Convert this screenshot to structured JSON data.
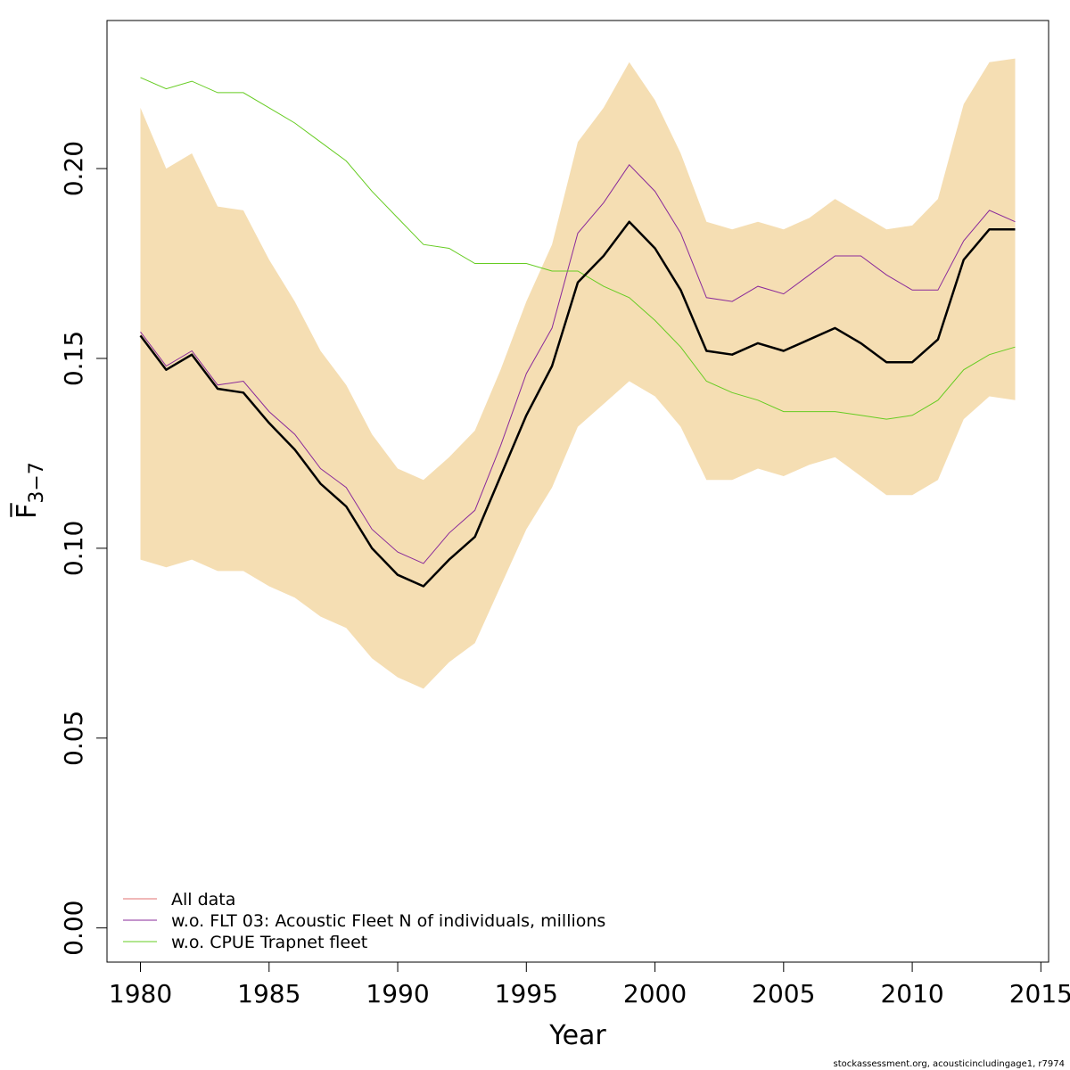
{
  "chart_data": {
    "type": "line",
    "title": "",
    "xlabel": "Year",
    "ylabel": "F̅",
    "ylabel_subscript": "3−7",
    "xlim": [
      1978.7,
      2015.3
    ],
    "ylim": [
      -0.009,
      0.239
    ],
    "x_ticks": [
      1980,
      1985,
      1990,
      1995,
      2000,
      2005,
      2010,
      2015
    ],
    "y_ticks": [
      0.0,
      0.05,
      0.1,
      0.15,
      0.2
    ],
    "y_tick_labels": [
      "0.00",
      "0.05",
      "0.10",
      "0.15",
      "0.20"
    ],
    "grid": false,
    "legend_position": "bottom-left",
    "x": [
      1980,
      1981,
      1982,
      1983,
      1984,
      1985,
      1986,
      1987,
      1988,
      1989,
      1990,
      1991,
      1992,
      1993,
      1994,
      1995,
      1996,
      1997,
      1998,
      1999,
      2000,
      2001,
      2002,
      2003,
      2004,
      2005,
      2006,
      2007,
      2008,
      2009,
      2010,
      2011,
      2012,
      2013,
      2014
    ],
    "band": {
      "color": "#f5deb3",
      "upper": [
        0.216,
        0.2,
        0.204,
        0.19,
        0.189,
        0.176,
        0.165,
        0.152,
        0.143,
        0.13,
        0.121,
        0.118,
        0.124,
        0.131,
        0.147,
        0.165,
        0.18,
        0.207,
        0.216,
        0.228,
        0.218,
        0.204,
        0.186,
        0.184,
        0.186,
        0.184,
        0.187,
        0.192,
        0.188,
        0.184,
        0.185,
        0.192,
        0.217,
        0.228,
        0.229
      ],
      "lower": [
        0.097,
        0.095,
        0.097,
        0.094,
        0.094,
        0.09,
        0.087,
        0.082,
        0.079,
        0.071,
        0.066,
        0.063,
        0.07,
        0.075,
        0.09,
        0.105,
        0.116,
        0.132,
        0.138,
        0.144,
        0.14,
        0.132,
        0.118,
        0.118,
        0.121,
        0.119,
        0.122,
        0.124,
        0.119,
        0.114,
        0.114,
        0.118,
        0.134,
        0.14,
        0.139
      ]
    },
    "series": [
      {
        "name": "All data",
        "color": "#e07070",
        "width": 1,
        "values": [
          0.156,
          0.147,
          0.151,
          0.142,
          0.141,
          0.133,
          0.126,
          0.117,
          0.111,
          0.1,
          0.093,
          0.09,
          0.097,
          0.103,
          0.119,
          0.135,
          0.148,
          0.17,
          0.177,
          0.186,
          0.179,
          0.168,
          0.152,
          0.151,
          0.154,
          0.152,
          0.155,
          0.158,
          0.154,
          0.149,
          0.149,
          0.155,
          0.176,
          0.184,
          0.184
        ]
      },
      {
        "name": "w.o. FLT 03: Acoustic Fleet   N of individuals, millions",
        "color": "#8a2a9a",
        "width": 1,
        "values": [
          0.157,
          0.148,
          0.152,
          0.143,
          0.144,
          0.136,
          0.13,
          0.121,
          0.116,
          0.105,
          0.099,
          0.096,
          0.104,
          0.11,
          0.127,
          0.146,
          0.158,
          0.183,
          0.191,
          0.201,
          0.194,
          0.183,
          0.166,
          0.165,
          0.169,
          0.167,
          0.172,
          0.177,
          0.177,
          0.172,
          0.168,
          0.168,
          0.181,
          0.189,
          0.186
        ]
      },
      {
        "name": "w.o. CPUE Trapnet fleet",
        "color": "#66cc22",
        "width": 1,
        "values": [
          0.224,
          0.221,
          0.223,
          0.22,
          0.22,
          0.216,
          0.212,
          0.207,
          0.202,
          0.194,
          0.187,
          0.18,
          0.179,
          0.175,
          0.175,
          0.175,
          0.173,
          0.173,
          0.169,
          0.166,
          0.16,
          0.153,
          0.144,
          0.141,
          0.139,
          0.136,
          0.136,
          0.136,
          0.135,
          0.134,
          0.135,
          0.139,
          0.147,
          0.151,
          0.153
        ]
      }
    ],
    "main_line": {
      "color": "#000000",
      "width": 2.5,
      "values": [
        0.156,
        0.147,
        0.151,
        0.142,
        0.141,
        0.133,
        0.126,
        0.117,
        0.111,
        0.1,
        0.093,
        0.09,
        0.097,
        0.103,
        0.119,
        0.135,
        0.148,
        0.17,
        0.177,
        0.186,
        0.179,
        0.168,
        0.152,
        0.151,
        0.154,
        0.152,
        0.155,
        0.158,
        0.154,
        0.149,
        0.149,
        0.155,
        0.176,
        0.184,
        0.184
      ]
    }
  },
  "footer_text": "stockassessment.org, acousticincludingage1, r7974"
}
